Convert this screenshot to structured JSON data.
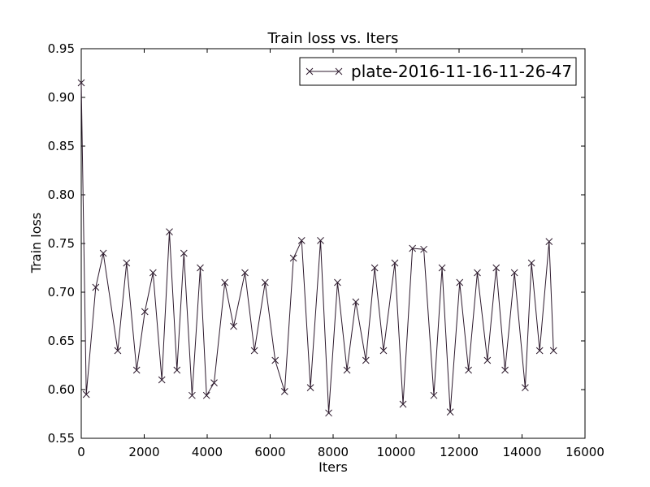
{
  "chart_data": {
    "type": "line",
    "title": "Train loss  vs. Iters",
    "xlabel": "Iters",
    "ylabel": "Train loss",
    "xlim": [
      0,
      16000
    ],
    "ylim": [
      0.55,
      0.95
    ],
    "xticks": [
      0,
      2000,
      4000,
      6000,
      8000,
      10000,
      12000,
      14000,
      16000
    ],
    "yticks": [
      0.55,
      0.6,
      0.65,
      0.7,
      0.75,
      0.8,
      0.85,
      0.9,
      0.95
    ],
    "xtick_labels": [
      "0",
      "2000",
      "4000",
      "6000",
      "8000",
      "10000",
      "12000",
      "14000",
      "16000"
    ],
    "ytick_labels": [
      "0.55",
      "0.60",
      "0.65",
      "0.70",
      "0.75",
      "0.80",
      "0.85",
      "0.90",
      "0.95"
    ],
    "grid": false,
    "legend_position": "top-right",
    "series": [
      {
        "name": "plate-2016-11-16-11-26-47",
        "color": "#2d1a2d",
        "marker": "x",
        "x": [
          0,
          160,
          460,
          700,
          1160,
          1440,
          1760,
          2020,
          2280,
          2560,
          2800,
          3040,
          3260,
          3520,
          3780,
          3980,
          4220,
          4560,
          4840,
          5200,
          5500,
          5840,
          6160,
          6460,
          6740,
          7000,
          7280,
          7600,
          7860,
          8140,
          8440,
          8720,
          9040,
          9320,
          9600,
          9960,
          10220,
          10520,
          10880,
          11200,
          11460,
          11720,
          12020,
          12300,
          12580,
          12900,
          13180,
          13460,
          13760,
          14100,
          14300,
          14560,
          14860,
          15000
        ],
        "y": [
          0.915,
          0.595,
          0.705,
          0.74,
          0.64,
          0.73,
          0.62,
          0.68,
          0.72,
          0.61,
          0.762,
          0.62,
          0.74,
          0.594,
          0.725,
          0.594,
          0.607,
          0.71,
          0.665,
          0.72,
          0.64,
          0.71,
          0.63,
          0.598,
          0.735,
          0.753,
          0.602,
          0.753,
          0.576,
          0.71,
          0.62,
          0.69,
          0.63,
          0.725,
          0.64,
          0.73,
          0.585,
          0.745,
          0.744,
          0.594,
          0.725,
          0.577,
          0.71,
          0.62,
          0.72,
          0.63,
          0.725,
          0.62,
          0.72,
          0.602,
          0.73,
          0.64,
          0.752,
          0.64
        ]
      }
    ]
  }
}
